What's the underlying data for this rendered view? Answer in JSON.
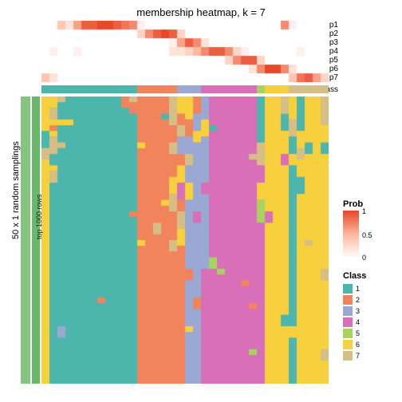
{
  "title": "membership heatmap, k = 7",
  "side_label_1": "50 x 1 random samplings",
  "side_label_2": "top 1000 rows",
  "p_labels": [
    "p1",
    "p2",
    "p3",
    "p4",
    "p5",
    "p6",
    "p7"
  ],
  "class_label": "Class",
  "layout": {
    "n_cols": 36,
    "prob_rows_h": 11,
    "main_w": 360,
    "main_h": 360
  },
  "prob_palette": {
    "low": "#ffffff",
    "mid": "#fdb9a0",
    "high": "#e8482a"
  },
  "class_colors": {
    "1": "#4db6ac",
    "2": "#f2845c",
    "3": "#9aa8d4",
    "4": "#d86fb8",
    "5": "#a8d45e",
    "6": "#f7d13d",
    "7": "#d6bf86"
  },
  "prob_rows": [
    [
      0,
      0,
      0.4,
      0.2,
      0.6,
      0.9,
      0.9,
      1,
      1,
      0.9,
      0.8,
      0.7,
      0.1,
      0,
      0,
      0,
      0,
      0,
      0,
      0,
      0,
      0,
      0,
      0,
      0,
      0,
      0,
      0,
      0,
      0,
      0.7,
      0.1,
      0,
      0,
      0,
      0
    ],
    [
      0,
      0,
      0,
      0,
      0,
      0,
      0,
      0,
      0,
      0,
      0,
      0,
      0.3,
      0.7,
      0.9,
      1,
      0.9,
      0.3,
      0,
      0,
      0,
      0,
      0,
      0,
      0,
      0,
      0,
      0,
      0,
      0,
      0,
      0,
      0,
      0,
      0,
      0
    ],
    [
      0,
      0,
      0,
      0,
      0,
      0,
      0,
      0,
      0,
      0,
      0,
      0,
      0,
      0,
      0,
      0,
      0.1,
      0.6,
      0.9,
      0.7,
      0.2,
      0,
      0,
      0,
      0,
      0,
      0,
      0,
      0,
      0,
      0,
      0,
      0,
      0,
      0,
      0
    ],
    [
      0,
      0.1,
      0,
      0,
      0.1,
      0,
      0,
      0,
      0,
      0,
      0,
      0,
      0,
      0,
      0,
      0,
      0.2,
      0.2,
      0.3,
      0.5,
      0.7,
      0.9,
      0.9,
      0.7,
      0.3,
      0.1,
      0,
      0,
      0,
      0,
      0,
      0,
      0.1,
      0,
      0,
      0
    ],
    [
      0,
      0,
      0,
      0,
      0,
      0,
      0,
      0,
      0,
      0,
      0,
      0,
      0,
      0,
      0,
      0,
      0,
      0,
      0,
      0,
      0,
      0,
      0,
      0.3,
      0.7,
      0.9,
      0.9,
      0.3,
      0,
      0,
      0,
      0,
      0,
      0,
      0,
      0
    ],
    [
      0,
      0,
      0,
      0,
      0,
      0,
      0,
      0,
      0,
      0,
      0,
      0,
      0,
      0,
      0,
      0,
      0,
      0,
      0,
      0,
      0,
      0,
      0,
      0,
      0,
      0,
      0.2,
      0.7,
      1,
      1,
      0.7,
      0.2,
      0,
      0,
      0,
      0
    ],
    [
      0.4,
      0.2,
      0,
      0,
      0,
      0,
      0,
      0,
      0,
      0,
      0,
      0,
      0,
      0,
      0,
      0,
      0,
      0,
      0,
      0,
      0,
      0,
      0,
      0,
      0,
      0,
      0,
      0,
      0,
      0,
      0,
      0.4,
      0.8,
      0.9,
      0.6,
      0.3
    ]
  ],
  "class_row": [
    1,
    1,
    1,
    1,
    1,
    1,
    1,
    1,
    1,
    1,
    1,
    1,
    2,
    2,
    2,
    2,
    2,
    3,
    3,
    3,
    4,
    4,
    4,
    4,
    4,
    4,
    4,
    5,
    6,
    6,
    6,
    7,
    7,
    7,
    7,
    7
  ],
  "main_columns": [
    {
      "base": 6,
      "runs": [
        [
          0,
          6,
          6
        ],
        [
          6,
          9,
          1
        ],
        [
          9,
          11,
          7
        ],
        [
          11,
          50,
          6
        ]
      ]
    },
    {
      "base": 1,
      "runs": [
        [
          0,
          2,
          6
        ],
        [
          2,
          4,
          7
        ],
        [
          4,
          5,
          6
        ],
        [
          5,
          6,
          2
        ],
        [
          6,
          7,
          6
        ],
        [
          7,
          10,
          7
        ],
        [
          10,
          12,
          1
        ],
        [
          12,
          13,
          6
        ],
        [
          13,
          15,
          7
        ],
        [
          15,
          50,
          1
        ]
      ]
    },
    {
      "base": 1,
      "runs": [
        [
          0,
          1,
          7
        ],
        [
          1,
          4,
          1
        ],
        [
          4,
          5,
          6
        ],
        [
          5,
          8,
          1
        ],
        [
          8,
          9,
          7
        ],
        [
          9,
          50,
          1
        ],
        [
          40,
          42,
          3
        ]
      ]
    },
    {
      "base": 1,
      "runs": [
        [
          0,
          4,
          1
        ],
        [
          4,
          5,
          6
        ],
        [
          5,
          50,
          1
        ]
      ]
    },
    {
      "base": 1,
      "runs": [
        [
          0,
          50,
          1
        ]
      ]
    },
    {
      "base": 1,
      "runs": [
        [
          0,
          50,
          1
        ]
      ]
    },
    {
      "base": 1,
      "runs": [
        [
          0,
          50,
          1
        ]
      ]
    },
    {
      "base": 1,
      "runs": [
        [
          0,
          50,
          1
        ],
        [
          35,
          36,
          2
        ]
      ]
    },
    {
      "base": 1,
      "runs": [
        [
          0,
          50,
          1
        ]
      ]
    },
    {
      "base": 1,
      "runs": [
        [
          0,
          50,
          1
        ]
      ]
    },
    {
      "base": 1,
      "runs": [
        [
          0,
          2,
          2
        ],
        [
          2,
          50,
          1
        ]
      ]
    },
    {
      "base": 1,
      "runs": [
        [
          0,
          1,
          7
        ],
        [
          1,
          3,
          2
        ],
        [
          3,
          50,
          1
        ],
        [
          20,
          21,
          2
        ]
      ]
    },
    {
      "base": 2,
      "runs": [
        [
          0,
          50,
          2
        ],
        [
          8,
          9,
          6
        ],
        [
          25,
          26,
          6
        ]
      ]
    },
    {
      "base": 2,
      "runs": [
        [
          0,
          50,
          2
        ]
      ]
    },
    {
      "base": 2,
      "runs": [
        [
          0,
          50,
          2
        ],
        [
          22,
          24,
          7
        ]
      ]
    },
    {
      "base": 2,
      "runs": [
        [
          0,
          50,
          2
        ],
        [
          3,
          4,
          1
        ],
        [
          18,
          19,
          6
        ]
      ]
    },
    {
      "base": 2,
      "runs": [
        [
          0,
          5,
          7
        ],
        [
          5,
          8,
          2
        ],
        [
          8,
          10,
          7
        ],
        [
          10,
          14,
          2
        ],
        [
          14,
          17,
          6
        ],
        [
          17,
          20,
          7
        ],
        [
          20,
          25,
          2
        ],
        [
          25,
          27,
          7
        ],
        [
          27,
          50,
          2
        ]
      ]
    },
    {
      "base": 2,
      "runs": [
        [
          0,
          3,
          6
        ],
        [
          3,
          5,
          2
        ],
        [
          5,
          7,
          7
        ],
        [
          7,
          10,
          3
        ],
        [
          10,
          12,
          2
        ],
        [
          12,
          15,
          6
        ],
        [
          15,
          18,
          4
        ],
        [
          18,
          20,
          2
        ],
        [
          20,
          23,
          7
        ],
        [
          23,
          26,
          6
        ],
        [
          26,
          50,
          2
        ]
      ]
    },
    {
      "base": 3,
      "runs": [
        [
          0,
          4,
          6
        ],
        [
          4,
          7,
          2
        ],
        [
          7,
          10,
          3
        ],
        [
          10,
          12,
          7
        ],
        [
          12,
          15,
          3
        ],
        [
          15,
          18,
          6
        ],
        [
          18,
          50,
          3
        ],
        [
          30,
          32,
          2
        ],
        [
          40,
          41,
          6
        ]
      ]
    },
    {
      "base": 3,
      "runs": [
        [
          0,
          3,
          2
        ],
        [
          3,
          6,
          3
        ],
        [
          6,
          8,
          6
        ],
        [
          8,
          50,
          3
        ],
        [
          20,
          22,
          4
        ],
        [
          35,
          37,
          2
        ]
      ]
    },
    {
      "base": 4,
      "runs": [
        [
          0,
          4,
          3
        ],
        [
          4,
          7,
          6
        ],
        [
          7,
          50,
          3
        ],
        [
          15,
          17,
          4
        ],
        [
          30,
          50,
          4
        ]
      ]
    },
    {
      "base": 4,
      "runs": [
        [
          0,
          50,
          4
        ],
        [
          5,
          6,
          1
        ],
        [
          28,
          30,
          5
        ]
      ]
    },
    {
      "base": 4,
      "runs": [
        [
          0,
          50,
          4
        ],
        [
          30,
          31,
          5
        ]
      ]
    },
    {
      "base": 4,
      "runs": [
        [
          0,
          50,
          4
        ]
      ]
    },
    {
      "base": 4,
      "runs": [
        [
          0,
          50,
          4
        ]
      ]
    },
    {
      "base": 4,
      "runs": [
        [
          0,
          50,
          4
        ],
        [
          32,
          33,
          2
        ]
      ]
    },
    {
      "base": 4,
      "runs": [
        [
          0,
          50,
          4
        ],
        [
          10,
          11,
          7
        ],
        [
          36,
          37,
          2
        ],
        [
          44,
          45,
          5
        ]
      ]
    },
    {
      "base": 4,
      "runs": [
        [
          0,
          8,
          1
        ],
        [
          8,
          12,
          7
        ],
        [
          12,
          15,
          4
        ],
        [
          15,
          18,
          6
        ],
        [
          18,
          22,
          5
        ],
        [
          22,
          50,
          4
        ]
      ]
    },
    {
      "base": 6,
      "runs": [
        [
          0,
          50,
          6
        ],
        [
          20,
          22,
          4
        ]
      ]
    },
    {
      "base": 6,
      "runs": [
        [
          0,
          50,
          6
        ]
      ]
    },
    {
      "base": 6,
      "runs": [
        [
          0,
          3,
          7
        ],
        [
          3,
          6,
          1
        ],
        [
          6,
          10,
          6
        ],
        [
          10,
          12,
          4
        ],
        [
          12,
          50,
          6
        ],
        [
          38,
          40,
          1
        ]
      ]
    },
    {
      "base": 1,
      "runs": [
        [
          0,
          4,
          6
        ],
        [
          4,
          7,
          7
        ],
        [
          7,
          10,
          1
        ],
        [
          10,
          12,
          6
        ],
        [
          12,
          50,
          1
        ],
        [
          40,
          42,
          6
        ]
      ]
    },
    {
      "base": 6,
      "runs": [
        [
          0,
          6,
          1
        ],
        [
          6,
          9,
          6
        ],
        [
          9,
          11,
          7
        ],
        [
          11,
          14,
          6
        ],
        [
          14,
          17,
          1
        ],
        [
          17,
          50,
          6
        ]
      ]
    },
    {
      "base": 6,
      "runs": [
        [
          0,
          50,
          6
        ],
        [
          8,
          10,
          1
        ],
        [
          25,
          26,
          7
        ]
      ]
    },
    {
      "base": 6,
      "runs": [
        [
          0,
          50,
          6
        ]
      ]
    },
    {
      "base": 6,
      "runs": [
        [
          0,
          5,
          7
        ],
        [
          5,
          8,
          6
        ],
        [
          8,
          10,
          1
        ],
        [
          10,
          50,
          6
        ],
        [
          30,
          32,
          7
        ],
        [
          44,
          46,
          7
        ]
      ]
    }
  ],
  "legend_prob": {
    "title": "Prob",
    "ticks": [
      {
        "v": 1,
        "y": 0
      },
      {
        "v": 0.5,
        "y": 30
      },
      {
        "v": 0,
        "y": 58
      }
    ]
  },
  "legend_class": {
    "title": "Class",
    "items": [
      "1",
      "2",
      "3",
      "4",
      "5",
      "6",
      "7"
    ]
  }
}
